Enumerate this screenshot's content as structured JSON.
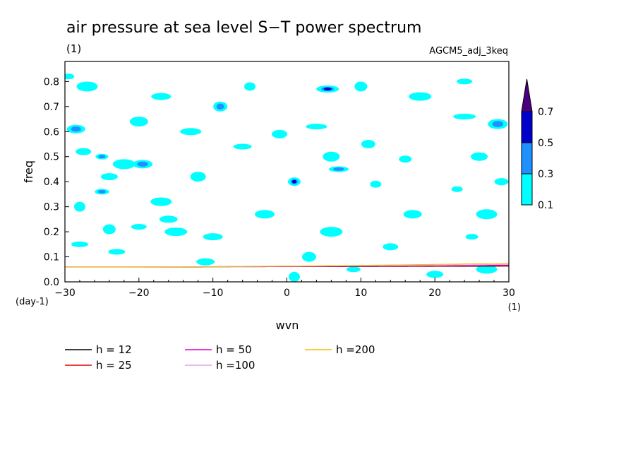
{
  "chart_data": {
    "type": "line",
    "title": "air pressure at sea level S−T power spectrum",
    "title_unit": "(1)",
    "source_label": "AGCM5_adj_3keq",
    "xlabel": "wvn",
    "xunit": "(1)",
    "ylabel": "freq",
    "yunit": "(day-1)",
    "xlim": [
      -30,
      30
    ],
    "ylim": [
      0,
      0.88
    ],
    "xticks": [
      -30,
      -20,
      -10,
      0,
      10,
      20,
      30
    ],
    "xtick_labels": [
      "−30",
      "−20",
      "−10",
      "0",
      "10",
      "20",
      "30"
    ],
    "yticks": [
      0,
      0.1,
      0.2,
      0.3,
      0.4,
      0.5,
      0.6,
      0.7,
      0.8
    ],
    "ytick_labels": [
      "0.0",
      "0.1",
      "0.2",
      "0.3",
      "0.4",
      "0.5",
      "0.6",
      "0.7",
      "0.8"
    ],
    "grid": false,
    "legend_position": "bottom",
    "series": [
      {
        "name": "h = 12",
        "color": "#000000",
        "equivalent_depth": 12
      },
      {
        "name": "h = 25",
        "color": "#e00000",
        "equivalent_depth": 25
      },
      {
        "name": "h = 50",
        "color": "#d800c0",
        "equivalent_depth": 50
      },
      {
        "name": "h =100",
        "color": "#e4a0e4",
        "equivalent_depth": 100
      },
      {
        "name": "h =200",
        "color": "#f0c000",
        "equivalent_depth": 200
      }
    ],
    "colorbar": {
      "levels": [
        "0.1",
        "0.3",
        "0.5",
        "0.7"
      ],
      "colors": [
        "#00ffff",
        "#1e90ff",
        "#0000cd",
        "#4b0082"
      ]
    },
    "contour_patches": [
      {
        "x": -29.5,
        "y": 0.82,
        "level": 1
      },
      {
        "x": -27,
        "y": 0.78,
        "level": 1
      },
      {
        "x": -28.5,
        "y": 0.61,
        "level": 2
      },
      {
        "x": -27.5,
        "y": 0.52,
        "level": 1
      },
      {
        "x": -25,
        "y": 0.5,
        "level": 2
      },
      {
        "x": -22,
        "y": 0.47,
        "level": 1
      },
      {
        "x": -19.5,
        "y": 0.47,
        "level": 2
      },
      {
        "x": -24,
        "y": 0.42,
        "level": 1
      },
      {
        "x": -25,
        "y": 0.36,
        "level": 2
      },
      {
        "x": -28,
        "y": 0.3,
        "level": 1
      },
      {
        "x": -17,
        "y": 0.32,
        "level": 1
      },
      {
        "x": -16,
        "y": 0.25,
        "level": 1
      },
      {
        "x": -20,
        "y": 0.22,
        "level": 1
      },
      {
        "x": -24,
        "y": 0.21,
        "level": 1
      },
      {
        "x": -15,
        "y": 0.2,
        "level": 1
      },
      {
        "x": -10,
        "y": 0.18,
        "level": 1
      },
      {
        "x": -28,
        "y": 0.15,
        "level": 1
      },
      {
        "x": -9,
        "y": 0.7,
        "level": 2
      },
      {
        "x": -5,
        "y": 0.78,
        "level": 1
      },
      {
        "x": -13,
        "y": 0.6,
        "level": 1
      },
      {
        "x": -6,
        "y": 0.54,
        "level": 1
      },
      {
        "x": -12,
        "y": 0.42,
        "level": 1
      },
      {
        "x": 1,
        "y": 0.4,
        "level": 3
      },
      {
        "x": 5.5,
        "y": 0.77,
        "level": 3
      },
      {
        "x": 7,
        "y": 0.45,
        "level": 2
      },
      {
        "x": 6,
        "y": 0.5,
        "level": 1
      },
      {
        "x": 11,
        "y": 0.55,
        "level": 1
      },
      {
        "x": 12,
        "y": 0.39,
        "level": 1
      },
      {
        "x": 4,
        "y": 0.62,
        "level": 1
      },
      {
        "x": -20,
        "y": 0.64,
        "level": 1
      },
      {
        "x": -1,
        "y": 0.59,
        "level": 1
      },
      {
        "x": 16,
        "y": 0.49,
        "level": 1
      },
      {
        "x": 24,
        "y": 0.66,
        "level": 1
      },
      {
        "x": 28.5,
        "y": 0.63,
        "level": 2
      },
      {
        "x": 26,
        "y": 0.5,
        "level": 1
      },
      {
        "x": 29,
        "y": 0.4,
        "level": 1
      },
      {
        "x": 23,
        "y": 0.37,
        "level": 1
      },
      {
        "x": 27,
        "y": 0.27,
        "level": 1
      },
      {
        "x": 17,
        "y": 0.27,
        "level": 1
      },
      {
        "x": 14,
        "y": 0.14,
        "level": 1
      },
      {
        "x": 25,
        "y": 0.18,
        "level": 1
      },
      {
        "x": 6,
        "y": 0.2,
        "level": 1
      },
      {
        "x": -3,
        "y": 0.27,
        "level": 1
      },
      {
        "x": 20,
        "y": 0.03,
        "level": 1
      },
      {
        "x": 9,
        "y": 0.05,
        "level": 1
      },
      {
        "x": 1,
        "y": 0.02,
        "level": 1
      },
      {
        "x": 27,
        "y": 0.05,
        "level": 1
      },
      {
        "x": -11,
        "y": 0.08,
        "level": 1
      },
      {
        "x": 24,
        "y": 0.8,
        "level": 1
      },
      {
        "x": 10,
        "y": 0.78,
        "level": 1
      },
      {
        "x": 18,
        "y": 0.74,
        "level": 1
      },
      {
        "x": -17,
        "y": 0.74,
        "level": 1
      },
      {
        "x": -23,
        "y": 0.12,
        "level": 1
      },
      {
        "x": 3,
        "y": 0.1,
        "level": 1
      }
    ]
  }
}
